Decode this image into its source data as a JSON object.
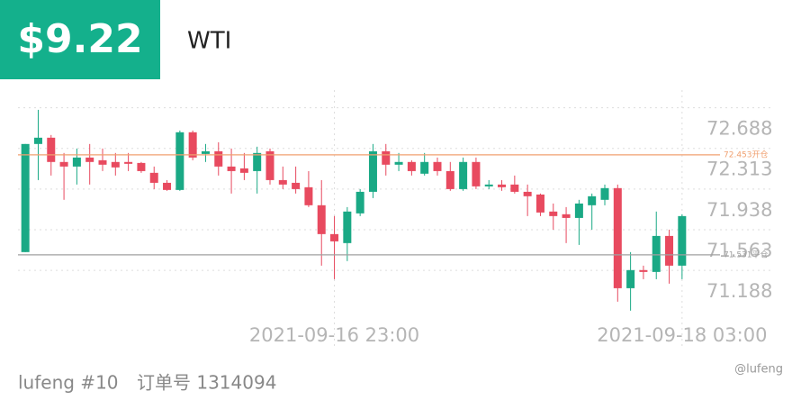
{
  "header": {
    "price": "$9.22",
    "symbol": "WTI"
  },
  "footer": {
    "user": "lufeng #10",
    "order": "订单号 1314094",
    "watermark": "@lufeng"
  },
  "chart_data": {
    "type": "candlestick",
    "categories": [
      null,
      null,
      null,
      null,
      null,
      null,
      null,
      null,
      null,
      null,
      null,
      null,
      null,
      null,
      null,
      null,
      null,
      null,
      null,
      null,
      null,
      null,
      null,
      null,
      "2021-09-16 23:00",
      null,
      null,
      null,
      null,
      null,
      null,
      null,
      null,
      null,
      null,
      null,
      null,
      null,
      null,
      null,
      null,
      null,
      null,
      null,
      null,
      null,
      null,
      null,
      null,
      null,
      null,
      "2021-09-18 03:00"
    ],
    "open": [
      71.556,
      72.553,
      72.611,
      72.387,
      72.345,
      72.428,
      72.403,
      72.387,
      72.387,
      72.378,
      72.287,
      72.195,
      72.129,
      72.661,
      72.461,
      72.486,
      72.345,
      72.328,
      72.303,
      72.486,
      72.22,
      72.195,
      72.154,
      71.988,
      71.722,
      71.639,
      71.913,
      72.112,
      72.486,
      72.362,
      72.387,
      72.279,
      72.387,
      72.303,
      72.137,
      72.387,
      72.162,
      72.179,
      72.179,
      72.112,
      72.087,
      71.93,
      71.905,
      71.871,
      71.988,
      72.038,
      72.146,
      71.223,
      71.39,
      71.373,
      71.705,
      71.431
    ],
    "high": [
      72.553,
      72.868,
      72.636,
      72.47,
      72.511,
      72.553,
      72.511,
      72.47,
      72.47,
      72.387,
      72.345,
      72.22,
      72.677,
      72.677,
      72.553,
      72.569,
      72.511,
      72.47,
      72.528,
      72.511,
      72.345,
      72.345,
      72.303,
      72.22,
      71.888,
      71.971,
      72.137,
      72.553,
      72.553,
      72.47,
      72.403,
      72.47,
      72.428,
      72.387,
      72.428,
      72.428,
      72.22,
      72.22,
      72.262,
      72.179,
      72.096,
      72.004,
      71.971,
      72.038,
      72.096,
      72.179,
      72.179,
      71.556,
      71.431,
      71.93,
      71.763,
      71.905
    ],
    "low": [
      71.556,
      72.22,
      72.262,
      72.038,
      72.179,
      72.179,
      72.303,
      72.262,
      72.303,
      72.287,
      72.137,
      72.121,
      72.121,
      72.403,
      72.387,
      72.262,
      72.096,
      72.22,
      72.096,
      72.179,
      72.137,
      72.096,
      71.971,
      71.431,
      71.306,
      71.473,
      71.888,
      72.054,
      72.262,
      72.303,
      72.262,
      72.262,
      72.262,
      72.121,
      72.121,
      72.137,
      72.137,
      72.121,
      72.096,
      71.888,
      71.888,
      71.763,
      71.639,
      71.622,
      71.763,
      71.988,
      71.099,
      71.016,
      71.306,
      71.306,
      71.265,
      71.306
    ],
    "close": [
      72.553,
      72.611,
      72.387,
      72.345,
      72.428,
      72.387,
      72.362,
      72.337,
      72.37,
      72.303,
      72.195,
      72.129,
      72.661,
      72.428,
      72.486,
      72.345,
      72.303,
      72.287,
      72.47,
      72.22,
      72.179,
      72.137,
      71.988,
      71.722,
      71.655,
      71.93,
      72.112,
      72.486,
      72.362,
      72.387,
      72.303,
      72.387,
      72.303,
      72.137,
      72.387,
      72.162,
      72.179,
      72.154,
      72.112,
      72.071,
      71.921,
      71.888,
      71.871,
      72.004,
      72.071,
      72.146,
      71.223,
      71.39,
      71.373,
      71.705,
      71.431,
      71.888
    ],
    "up_color": "#1aa985",
    "down_color": "#e84a5f",
    "ylim": [
      70.89,
      73.05
    ],
    "yticks": [
      72.688,
      72.313,
      71.938,
      71.563,
      71.188
    ],
    "grid": true,
    "lines": [
      {
        "value": 72.453,
        "label": "72.453开仓",
        "color": "#f0a070"
      },
      {
        "value": 71.531,
        "label": "71.531平仓",
        "color": "#a0a0a0"
      }
    ]
  }
}
